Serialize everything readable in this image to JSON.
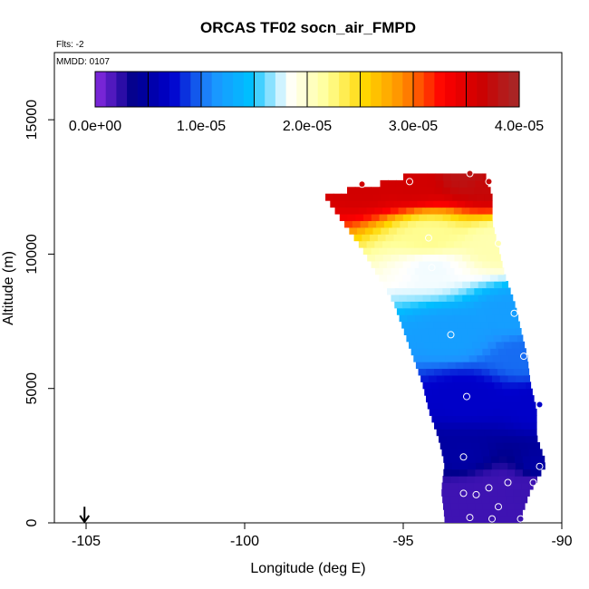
{
  "chart_data": {
    "type": "heatmap",
    "title": "ORCAS TF02 socn_air_FMPD",
    "subtitle_flights": "Flts: -2",
    "subtitle_date": "MMDD: 0107",
    "xlabel": "Longitude (deg E)",
    "ylabel": "Altitude (m)",
    "xlim": [
      -106,
      -90
    ],
    "ylim": [
      0,
      17500
    ],
    "xticks": [
      -105,
      -100,
      -95,
      -90
    ],
    "xtick_labels": [
      "-105",
      "-100",
      "-95",
      "-90"
    ],
    "yticks": [
      0,
      5000,
      10000,
      15000
    ],
    "ytick_labels": [
      "0",
      "5000",
      "10000",
      "15000"
    ],
    "colorbar": {
      "min": 0,
      "max": 4e-05,
      "ticks": [
        0,
        1e-05,
        2e-05,
        3e-05,
        4e-05
      ],
      "tick_labels": [
        "0.0e+00",
        "1.0e-05",
        "2.0e-05",
        "3.0e-05",
        "4.0e-05"
      ],
      "colors": [
        "#8a2be2",
        "#00008b",
        "#0000cd",
        "#1e90ff",
        "#00bfff",
        "#ffffff",
        "#ffff99",
        "#ffd700",
        "#ff8c00",
        "#ff0000",
        "#cc0000",
        "#a52a2a"
      ]
    },
    "arrow_marker": {
      "longitude": -105.05,
      "altitude_top": 600,
      "altitude_bottom": 0
    },
    "field_extent": [
      {
        "alt": 200,
        "lon_min": -93.7,
        "lon_max": -91.3
      },
      {
        "alt": 1200,
        "lon_min": -93.8,
        "lon_max": -91.0
      },
      {
        "alt": 2200,
        "lon_min": -93.7,
        "lon_max": -90.5
      },
      {
        "alt": 3200,
        "lon_min": -93.9,
        "lon_max": -90.8
      },
      {
        "alt": 4200,
        "lon_min": -94.2,
        "lon_max": -90.8
      },
      {
        "alt": 5200,
        "lon_min": -94.4,
        "lon_max": -91.0
      },
      {
        "alt": 6200,
        "lon_min": -94.7,
        "lon_max": -91.1
      },
      {
        "alt": 7200,
        "lon_min": -95.0,
        "lon_max": -91.3
      },
      {
        "alt": 8200,
        "lon_min": -95.3,
        "lon_max": -91.5
      },
      {
        "alt": 9200,
        "lon_min": -95.8,
        "lon_max": -91.8
      },
      {
        "alt": 10200,
        "lon_min": -96.3,
        "lon_max": -92.0
      },
      {
        "alt": 11200,
        "lon_min": -96.9,
        "lon_max": -92.2
      },
      {
        "alt": 12200,
        "lon_min": -97.5,
        "lon_max": -92.2
      },
      {
        "alt": 12800,
        "lon_min": -95.0,
        "lon_max": -92.4
      }
    ],
    "observations": [
      {
        "lon": -92.9,
        "alt": 200,
        "value": 2e-06
      },
      {
        "lon": -92.2,
        "alt": 150,
        "value": 2e-06
      },
      {
        "lon": -91.3,
        "alt": 150,
        "value": 2e-06
      },
      {
        "lon": -92.0,
        "alt": 600,
        "value": 2e-06
      },
      {
        "lon": -93.1,
        "alt": 1100,
        "value": 2e-06
      },
      {
        "lon": -92.7,
        "alt": 1050,
        "value": 2e-06
      },
      {
        "lon": -92.3,
        "alt": 1300,
        "value": 2e-06
      },
      {
        "lon": -91.7,
        "alt": 1500,
        "value": 2e-06
      },
      {
        "lon": -90.9,
        "alt": 1500,
        "value": 2e-06
      },
      {
        "lon": -93.1,
        "alt": 2450,
        "value": 5e-06
      },
      {
        "lon": -90.7,
        "alt": 2100,
        "value": 5e-06
      },
      {
        "lon": -90.7,
        "alt": 4400,
        "value": 7e-06
      },
      {
        "lon": -93.0,
        "alt": 4700,
        "value": 7e-06
      },
      {
        "lon": -91.2,
        "alt": 6200,
        "value": 1e-05
      },
      {
        "lon": -93.5,
        "alt": 7000,
        "value": 1.2e-05
      },
      {
        "lon": -91.5,
        "alt": 7800,
        "value": 1.2e-05
      },
      {
        "lon": -94.1,
        "alt": 9500,
        "value": 1.8e-05
      },
      {
        "lon": -92.0,
        "alt": 10400,
        "value": 2.1e-05
      },
      {
        "lon": -94.2,
        "alt": 10600,
        "value": 2.2e-05
      },
      {
        "lon": -96.3,
        "alt": 12600,
        "value": 3.6e-05
      },
      {
        "lon": -94.8,
        "alt": 12700,
        "value": 3.6e-05
      },
      {
        "lon": -92.3,
        "alt": 12700,
        "value": 3.7e-05
      },
      {
        "lon": -92.9,
        "alt": 13000,
        "value": 3.8e-05
      }
    ]
  }
}
